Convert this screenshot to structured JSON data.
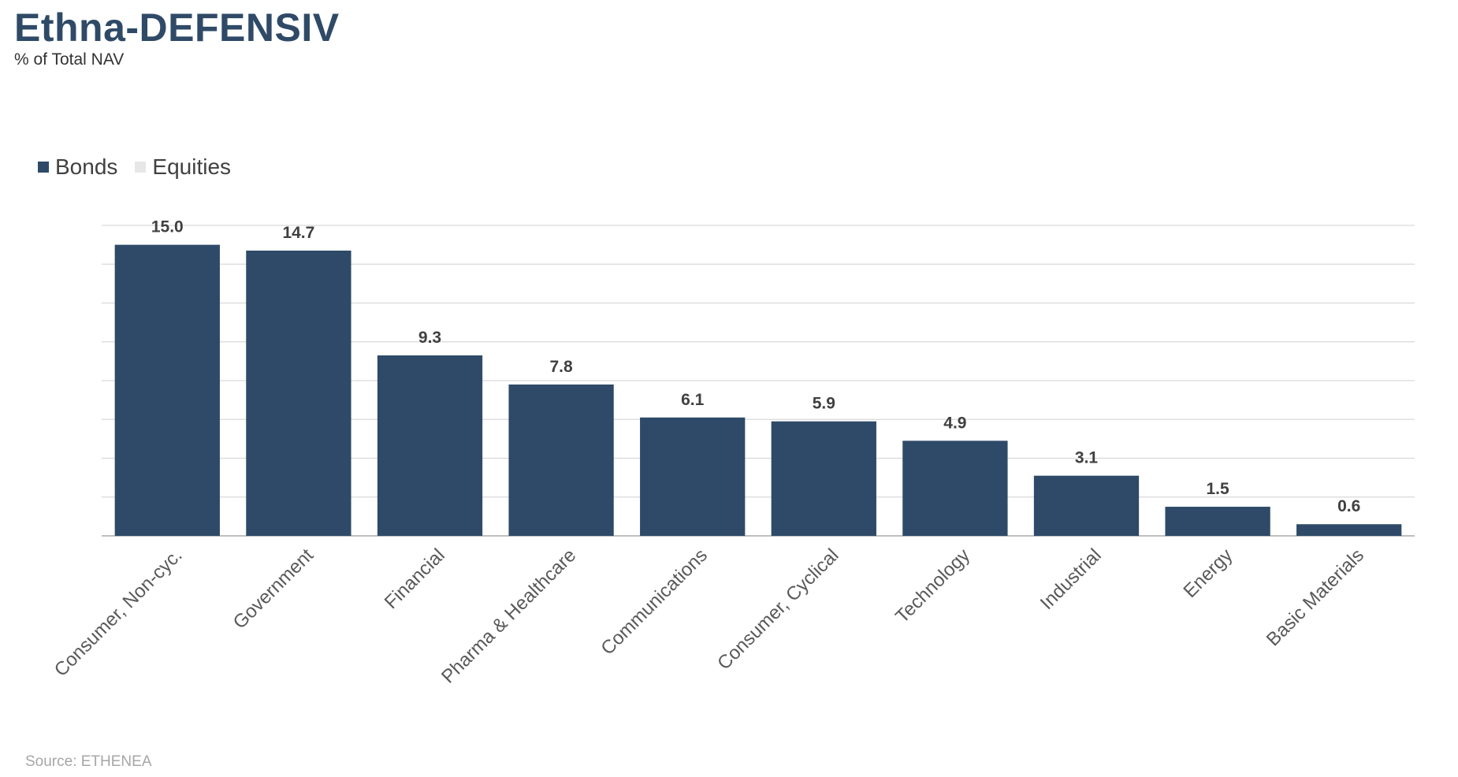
{
  "header": {
    "title": "Ethna-DEFENSIV",
    "subtitle": "% of Total NAV"
  },
  "legend": {
    "items": [
      {
        "label": "Bonds",
        "color": "#2e4a68"
      },
      {
        "label": "Equities",
        "color": "#e7e7e7"
      }
    ]
  },
  "footer": {
    "source": "Source: ETHENEA"
  },
  "chart_data": {
    "type": "bar",
    "categories": [
      "Consumer, Non-cyc.",
      "Government",
      "Financial",
      "Pharma & Healthcare",
      "Communications",
      "Consumer, Cyclical",
      "Technology",
      "Industrial",
      "Energy",
      "Basic Materials"
    ],
    "series": [
      {
        "name": "Bonds",
        "values": [
          15.0,
          14.7,
          9.3,
          7.8,
          6.1,
          5.9,
          4.9,
          3.1,
          1.5,
          0.6
        ],
        "color": "#2e4a68"
      },
      {
        "name": "Equities",
        "values": [
          0,
          0,
          0,
          0,
          0,
          0,
          0,
          0,
          0,
          0
        ],
        "color": "#e7e7e7"
      }
    ],
    "data_labels": [
      "15.0",
      "14.7",
      "9.3",
      "7.8",
      "6.1",
      "5.9",
      "4.9",
      "3.1",
      "1.5",
      "0.6"
    ],
    "ylim": [
      0,
      16
    ],
    "grid": true,
    "legend_position": "top-left"
  }
}
